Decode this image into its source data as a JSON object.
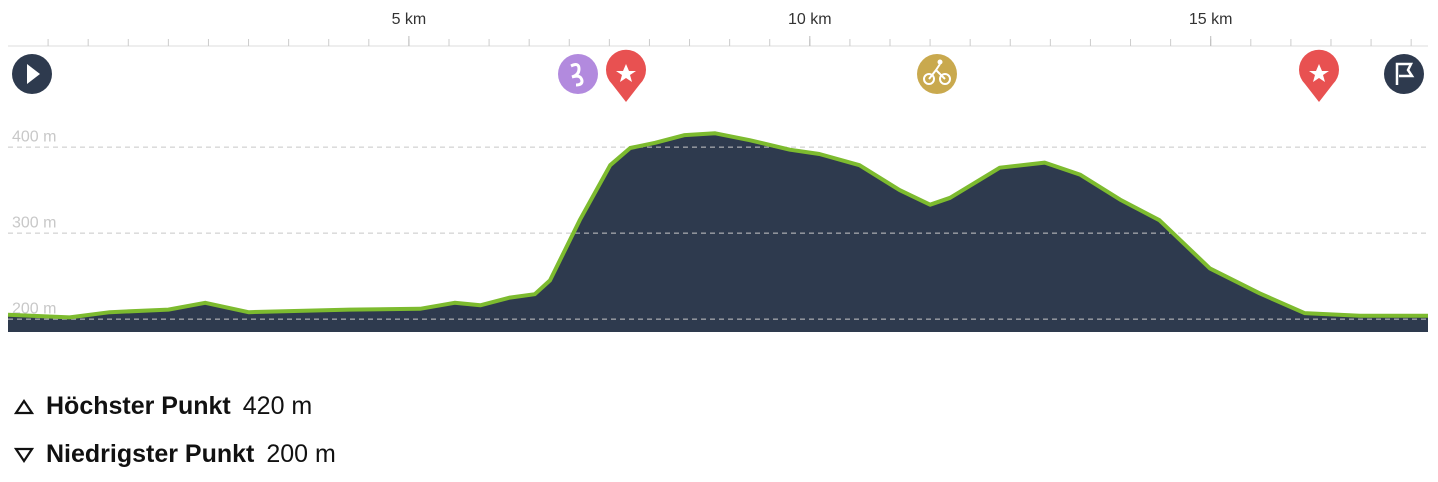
{
  "chart_data": {
    "type": "area",
    "x": [
      0,
      0.77,
      1.27,
      2.0,
      2.46,
      3.0,
      4.26,
      5.14,
      5.57,
      5.89,
      6.26,
      6.57,
      6.76,
      7.13,
      7.51,
      7.76,
      8.07,
      8.44,
      8.82,
      9.25,
      9.75,
      10.12,
      10.62,
      11.12,
      11.5,
      11.75,
      12.37,
      12.93,
      13.37,
      13.87,
      14.36,
      14.99,
      15.61,
      16.17,
      16.86,
      17.71
    ],
    "series": [
      {
        "color": "#7dbb2f",
        "fill": "#2e3a4e",
        "values": [
          205,
          202,
          208,
          211,
          219,
          208,
          211,
          212,
          219,
          216,
          225,
          229,
          245,
          315,
          379,
          399,
          405,
          414,
          416,
          408,
          397,
          392,
          379,
          350,
          333,
          341,
          376,
          382,
          368,
          339,
          315,
          259,
          230,
          207,
          204,
          204
        ]
      }
    ],
    "xlim": [
      0,
      17.71
    ],
    "xticks": [
      {
        "value": 5,
        "label": "5 km"
      },
      {
        "value": 10,
        "label": "10 km"
      },
      {
        "value": 15,
        "label": "15 km"
      }
    ],
    "xminor_step": 0.5,
    "ylim": [
      185,
      450
    ],
    "yticks": [
      {
        "value": 200,
        "label": "200 m"
      },
      {
        "value": 300,
        "label": "300 m"
      },
      {
        "value": 400,
        "label": "400 m"
      }
    ],
    "grid": true
  },
  "summary": [
    {
      "label": "Höchster Punkt",
      "value": "420 m"
    },
    {
      "label": "Niedrigster Punkt",
      "value": "200 m"
    }
  ]
}
